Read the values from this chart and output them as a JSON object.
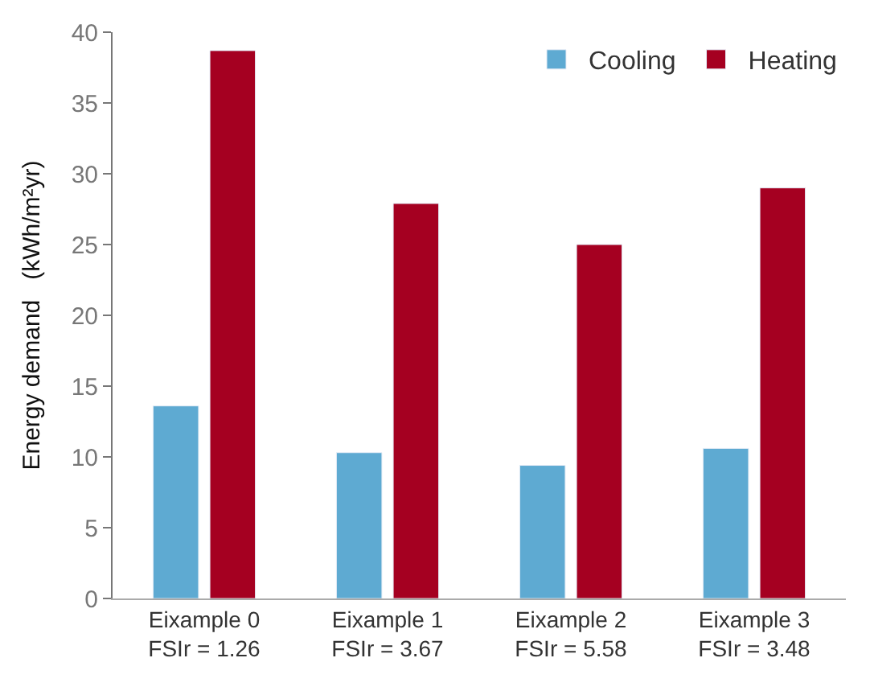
{
  "chart_data": {
    "type": "bar",
    "ylabel": "Energy demand   (kWh/m²yr)",
    "categories": [
      "Eixample 0\nFSIr = 1.26",
      "Eixample 1\nFSIr = 3.67",
      "Eixample 2\nFSIr = 5.58",
      "Eixample 3\nFSIr = 3.48"
    ],
    "series": [
      {
        "name": "Cooling",
        "color": "#5eaad2",
        "values": [
          13.6,
          10.3,
          9.4,
          10.6
        ]
      },
      {
        "name": "Heating",
        "color": "#a50021",
        "values": [
          38.7,
          27.9,
          25.0,
          29.0
        ]
      }
    ],
    "ylim": [
      0,
      40
    ],
    "yticks": [
      0,
      5,
      10,
      15,
      20,
      25,
      30,
      35,
      40
    ],
    "legend": "top right"
  }
}
